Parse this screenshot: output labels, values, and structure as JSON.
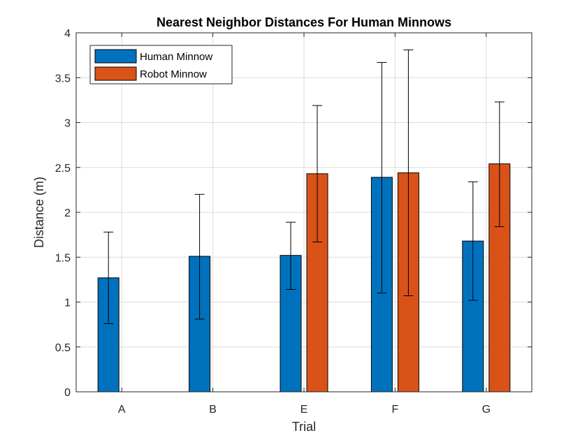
{
  "chart_data": {
    "type": "bar",
    "title": "Nearest Neighbor Distances For Human Minnows",
    "xlabel": "Trial",
    "ylabel": "Distance (m)",
    "categories": [
      "A",
      "B",
      "E",
      "F",
      "G"
    ],
    "ylim": [
      0,
      4
    ],
    "yticks": [
      "0",
      "0.5",
      "1",
      "1.5",
      "2",
      "2.5",
      "3",
      "3.5",
      "4"
    ],
    "grid": true,
    "legend_position": "top-left",
    "series": [
      {
        "name": "Human Minnow",
        "color": "#0072BD",
        "values": [
          1.27,
          1.51,
          1.52,
          2.39,
          1.68
        ],
        "error_low": [
          0.76,
          0.81,
          1.14,
          1.1,
          1.02
        ],
        "error_high": [
          1.78,
          2.2,
          1.89,
          3.67,
          2.34
        ]
      },
      {
        "name": "Robot Minnow",
        "color": "#D95319",
        "values": [
          null,
          null,
          2.43,
          2.44,
          2.54
        ],
        "error_low": [
          null,
          null,
          1.67,
          1.07,
          1.84
        ],
        "error_high": [
          null,
          null,
          3.19,
          3.81,
          3.23
        ]
      }
    ]
  }
}
